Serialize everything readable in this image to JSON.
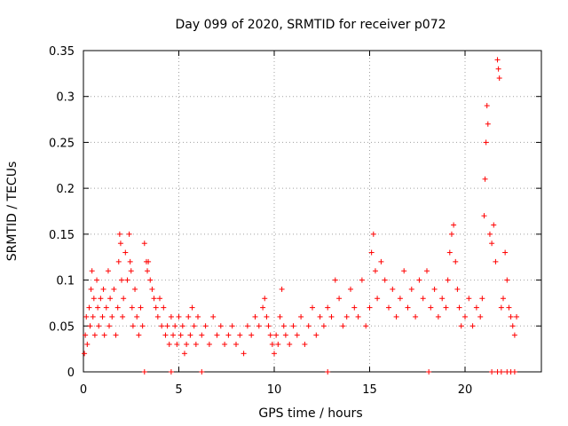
{
  "chart_data": {
    "type": "scatter",
    "title": "Day 099 of 2020, SRMTID for receiver p072",
    "xlabel": "GPS time / hours",
    "ylabel": "SRMTID / TECUs",
    "xlim": [
      0,
      24
    ],
    "ylim": [
      0,
      0.35
    ],
    "xticks": [
      0,
      5,
      10,
      15,
      20
    ],
    "xtick_labels": [
      "0",
      "5",
      "10",
      "15",
      "20"
    ],
    "yticks": [
      0,
      0.05,
      0.1,
      0.15,
      0.2,
      0.25,
      0.3,
      0.35
    ],
    "ytick_labels": [
      "0",
      "0.05",
      "0.1",
      "0.15",
      "0.2",
      "0.25",
      "0.3",
      "0.35"
    ],
    "grid": true,
    "marker": "+",
    "color": "#ff0000",
    "series": [
      {
        "name": "SRMTID",
        "points": [
          [
            0.05,
            0.02
          ],
          [
            0.1,
            0.04
          ],
          [
            0.15,
            0.06
          ],
          [
            0.2,
            0.03
          ],
          [
            0.3,
            0.07
          ],
          [
            0.35,
            0.05
          ],
          [
            0.4,
            0.09
          ],
          [
            0.45,
            0.11
          ],
          [
            0.5,
            0.06
          ],
          [
            0.55,
            0.08
          ],
          [
            0.6,
            0.04
          ],
          [
            0.7,
            0.1
          ],
          [
            0.75,
            0.07
          ],
          [
            0.8,
            0.05
          ],
          [
            0.9,
            0.08
          ],
          [
            1.0,
            0.06
          ],
          [
            1.05,
            0.09
          ],
          [
            1.1,
            0.04
          ],
          [
            1.2,
            0.07
          ],
          [
            1.3,
            0.11
          ],
          [
            1.35,
            0.05
          ],
          [
            1.4,
            0.08
          ],
          [
            1.5,
            0.06
          ],
          [
            1.6,
            0.09
          ],
          [
            1.7,
            0.04
          ],
          [
            1.8,
            0.07
          ],
          [
            1.85,
            0.12
          ],
          [
            1.9,
            0.15
          ],
          [
            1.95,
            0.14
          ],
          [
            2.0,
            0.1
          ],
          [
            2.05,
            0.06
          ],
          [
            2.1,
            0.08
          ],
          [
            2.2,
            0.13
          ],
          [
            2.3,
            0.1
          ],
          [
            2.4,
            0.15
          ],
          [
            2.45,
            0.12
          ],
          [
            2.5,
            0.11
          ],
          [
            2.55,
            0.07
          ],
          [
            2.6,
            0.05
          ],
          [
            2.7,
            0.09
          ],
          [
            2.8,
            0.06
          ],
          [
            2.9,
            0.04
          ],
          [
            3.0,
            0.07
          ],
          [
            3.1,
            0.05
          ],
          [
            3.2,
            0.14
          ],
          [
            3.3,
            0.12
          ],
          [
            3.35,
            0.11
          ],
          [
            3.4,
            0.12
          ],
          [
            3.5,
            0.1
          ],
          [
            3.6,
            0.09
          ],
          [
            3.7,
            0.08
          ],
          [
            3.8,
            0.07
          ],
          [
            3.9,
            0.06
          ],
          [
            4.0,
            0.08
          ],
          [
            4.1,
            0.05
          ],
          [
            4.2,
            0.07
          ],
          [
            4.3,
            0.04
          ],
          [
            4.4,
            0.05
          ],
          [
            4.5,
            0.03
          ],
          [
            4.6,
            0.06
          ],
          [
            4.7,
            0.04
          ],
          [
            4.8,
            0.05
          ],
          [
            4.9,
            0.03
          ],
          [
            5.0,
            0.06
          ],
          [
            5.1,
            0.04
          ],
          [
            5.2,
            0.05
          ],
          [
            5.3,
            0.02
          ],
          [
            5.4,
            0.03
          ],
          [
            5.5,
            0.06
          ],
          [
            5.6,
            0.04
          ],
          [
            5.7,
            0.07
          ],
          [
            5.8,
            0.05
          ],
          [
            5.9,
            0.03
          ],
          [
            6.0,
            0.06
          ],
          [
            6.2,
            0.04
          ],
          [
            6.4,
            0.05
          ],
          [
            6.6,
            0.03
          ],
          [
            6.8,
            0.06
          ],
          [
            7.0,
            0.04
          ],
          [
            7.2,
            0.05
          ],
          [
            7.4,
            0.03
          ],
          [
            7.6,
            0.04
          ],
          [
            7.8,
            0.05
          ],
          [
            8.0,
            0.03
          ],
          [
            8.2,
            0.04
          ],
          [
            8.4,
            0.02
          ],
          [
            8.6,
            0.05
          ],
          [
            8.8,
            0.04
          ],
          [
            9.0,
            0.06
          ],
          [
            9.2,
            0.05
          ],
          [
            9.4,
            0.07
          ],
          [
            9.5,
            0.08
          ],
          [
            9.6,
            0.06
          ],
          [
            9.7,
            0.05
          ],
          [
            9.8,
            0.04
          ],
          [
            9.9,
            0.03
          ],
          [
            10.0,
            0.02
          ],
          [
            10.1,
            0.04
          ],
          [
            10.2,
            0.03
          ],
          [
            10.3,
            0.06
          ],
          [
            10.4,
            0.09
          ],
          [
            10.5,
            0.05
          ],
          [
            10.6,
            0.04
          ],
          [
            10.8,
            0.03
          ],
          [
            11.0,
            0.05
          ],
          [
            11.2,
            0.04
          ],
          [
            11.4,
            0.06
          ],
          [
            11.6,
            0.03
          ],
          [
            11.8,
            0.05
          ],
          [
            12.0,
            0.07
          ],
          [
            12.2,
            0.04
          ],
          [
            12.4,
            0.06
          ],
          [
            12.6,
            0.05
          ],
          [
            12.8,
            0.07
          ],
          [
            13.0,
            0.06
          ],
          [
            13.2,
            0.1
          ],
          [
            13.4,
            0.08
          ],
          [
            13.6,
            0.05
          ],
          [
            13.8,
            0.06
          ],
          [
            14.0,
            0.09
          ],
          [
            14.2,
            0.07
          ],
          [
            14.4,
            0.06
          ],
          [
            14.6,
            0.1
          ],
          [
            14.8,
            0.05
          ],
          [
            15.0,
            0.07
          ],
          [
            15.1,
            0.13
          ],
          [
            15.2,
            0.15
          ],
          [
            15.3,
            0.11
          ],
          [
            15.4,
            0.08
          ],
          [
            15.6,
            0.12
          ],
          [
            15.8,
            0.1
          ],
          [
            16.0,
            0.07
          ],
          [
            16.2,
            0.09
          ],
          [
            16.4,
            0.06
          ],
          [
            16.6,
            0.08
          ],
          [
            16.8,
            0.11
          ],
          [
            17.0,
            0.07
          ],
          [
            17.2,
            0.09
          ],
          [
            17.4,
            0.06
          ],
          [
            17.6,
            0.1
          ],
          [
            17.8,
            0.08
          ],
          [
            18.0,
            0.11
          ],
          [
            18.2,
            0.07
          ],
          [
            18.4,
            0.09
          ],
          [
            18.6,
            0.06
          ],
          [
            18.8,
            0.08
          ],
          [
            19.0,
            0.07
          ],
          [
            19.1,
            0.1
          ],
          [
            19.2,
            0.13
          ],
          [
            19.3,
            0.15
          ],
          [
            19.4,
            0.16
          ],
          [
            19.5,
            0.12
          ],
          [
            19.6,
            0.09
          ],
          [
            19.7,
            0.07
          ],
          [
            19.8,
            0.05
          ],
          [
            20.0,
            0.06
          ],
          [
            20.2,
            0.08
          ],
          [
            20.4,
            0.05
          ],
          [
            20.6,
            0.07
          ],
          [
            20.8,
            0.06
          ],
          [
            20.9,
            0.08
          ],
          [
            21.0,
            0.17
          ],
          [
            21.05,
            0.21
          ],
          [
            21.1,
            0.25
          ],
          [
            21.15,
            0.29
          ],
          [
            21.2,
            0.27
          ],
          [
            21.3,
            0.15
          ],
          [
            21.4,
            0.14
          ],
          [
            21.5,
            0.16
          ],
          [
            21.6,
            0.12
          ],
          [
            21.7,
            0.34
          ],
          [
            21.75,
            0.33
          ],
          [
            21.8,
            0.32
          ],
          [
            21.9,
            0.07
          ],
          [
            22.0,
            0.08
          ],
          [
            22.1,
            0.13
          ],
          [
            22.2,
            0.1
          ],
          [
            22.3,
            0.07
          ],
          [
            22.4,
            0.06
          ],
          [
            22.5,
            0.05
          ],
          [
            22.6,
            0.04
          ],
          [
            22.7,
            0.06
          ],
          [
            3.2,
            0
          ],
          [
            4.6,
            0
          ],
          [
            6.2,
            0
          ],
          [
            12.8,
            0
          ],
          [
            18.1,
            0
          ],
          [
            21.4,
            0
          ],
          [
            21.7,
            0
          ],
          [
            21.9,
            0
          ],
          [
            22.2,
            0
          ],
          [
            22.4,
            0
          ],
          [
            22.6,
            0
          ]
        ]
      }
    ]
  }
}
